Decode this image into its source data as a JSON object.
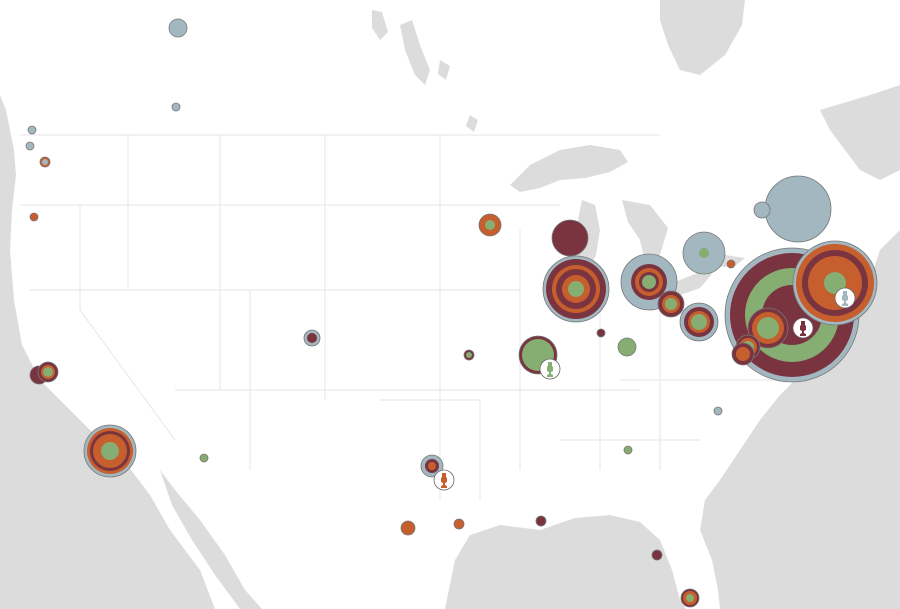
{
  "map": {
    "colors": {
      "land": "#ffffff",
      "water": "#dcdcdc",
      "state_border": "#e6e6e6",
      "steel": "#a3b7c1",
      "maroon": "#7a3440",
      "orange": "#c65f2d",
      "green": "#86ad72",
      "stroke": "#777777"
    },
    "markers": [
      {
        "name": "ring-far-north",
        "rings": [
          "steel"
        ]
      },
      {
        "name": "dot-north",
        "rings": [
          "steel"
        ]
      },
      {
        "name": "dot-vancouver-1",
        "rings": [
          "steel"
        ]
      },
      {
        "name": "dot-vancouver-2",
        "rings": [
          "steel"
        ]
      },
      {
        "name": "dot-seattle",
        "rings": [
          "orange",
          "steel"
        ]
      },
      {
        "name": "dot-portland",
        "rings": [
          "orange"
        ]
      },
      {
        "name": "ring-sf-1",
        "rings": [
          "maroon"
        ]
      },
      {
        "name": "ring-sf-2",
        "rings": [
          "maroon",
          "orange",
          "green"
        ]
      },
      {
        "name": "ring-los-angeles",
        "rings": [
          "steel",
          "orange",
          "maroon",
          "orange",
          "green"
        ]
      },
      {
        "name": "dot-phoenix",
        "rings": [
          "green"
        ]
      },
      {
        "name": "ring-denver",
        "rings": [
          "steel",
          "maroon"
        ]
      },
      {
        "name": "ring-dallas",
        "rings": [
          "steel",
          "maroon",
          "orange"
        ]
      },
      {
        "name": "dot-austin",
        "rings": [
          "orange"
        ]
      },
      {
        "name": "dot-houston",
        "rings": [
          "orange"
        ]
      },
      {
        "name": "dot-kansas-city",
        "rings": [
          "maroon",
          "green"
        ]
      },
      {
        "name": "ring-minneapolis",
        "rings": [
          "orange",
          "green"
        ]
      },
      {
        "name": "ring-st-louis",
        "rings": [
          "maroon",
          "green"
        ]
      },
      {
        "name": "ring-milwaukee",
        "rings": [
          "maroon"
        ]
      },
      {
        "name": "ring-chicago",
        "rings": [
          "steel",
          "maroon",
          "orange",
          "maroon",
          "orange",
          "green"
        ]
      },
      {
        "name": "dot-indianapolis",
        "rings": [
          "maroon"
        ]
      },
      {
        "name": "dot-cincinnati",
        "rings": [
          "green"
        ]
      },
      {
        "name": "ring-detroit",
        "rings": [
          "steel",
          "maroon",
          "orange",
          "maroon",
          "green"
        ]
      },
      {
        "name": "ring-cleveland",
        "rings": [
          "maroon",
          "orange",
          "green"
        ]
      },
      {
        "name": "ring-pittsburgh",
        "rings": [
          "steel",
          "maroon",
          "orange",
          "green"
        ]
      },
      {
        "name": "ring-toronto",
        "rings": [
          "steel",
          "green"
        ]
      },
      {
        "name": "dot-buffalo",
        "rings": [
          "orange"
        ]
      },
      {
        "name": "ring-montreal",
        "rings": [
          "steel"
        ]
      },
      {
        "name": "dot-ottawa",
        "rings": [
          "steel"
        ]
      },
      {
        "name": "ring-new-york",
        "rings": [
          "steel",
          "maroon",
          "green",
          "maroon"
        ]
      },
      {
        "name": "ring-boston",
        "rings": [
          "steel",
          "orange",
          "maroon",
          "orange",
          "green"
        ]
      },
      {
        "name": "ring-philadelphia",
        "rings": [
          "maroon",
          "orange",
          "green"
        ]
      },
      {
        "name": "ring-baltimore",
        "rings": [
          "maroon",
          "orange",
          "green"
        ]
      },
      {
        "name": "ring-washington",
        "rings": [
          "maroon",
          "orange"
        ]
      },
      {
        "name": "dot-raleigh",
        "rings": [
          "steel"
        ]
      },
      {
        "name": "dot-atlanta",
        "rings": [
          "green"
        ]
      },
      {
        "name": "dot-new-orleans",
        "rings": [
          "maroon"
        ]
      },
      {
        "name": "dot-tampa",
        "rings": [
          "maroon"
        ]
      },
      {
        "name": "ring-miami",
        "rings": [
          "maroon",
          "orange",
          "green"
        ]
      }
    ],
    "trophies": [
      {
        "name": "trophy-icon-st-louis",
        "color": "green"
      },
      {
        "name": "trophy-icon-dallas",
        "color": "orange"
      },
      {
        "name": "trophy-icon-new-york",
        "color": "maroon"
      },
      {
        "name": "trophy-icon-boston",
        "color": "steel"
      }
    ]
  }
}
